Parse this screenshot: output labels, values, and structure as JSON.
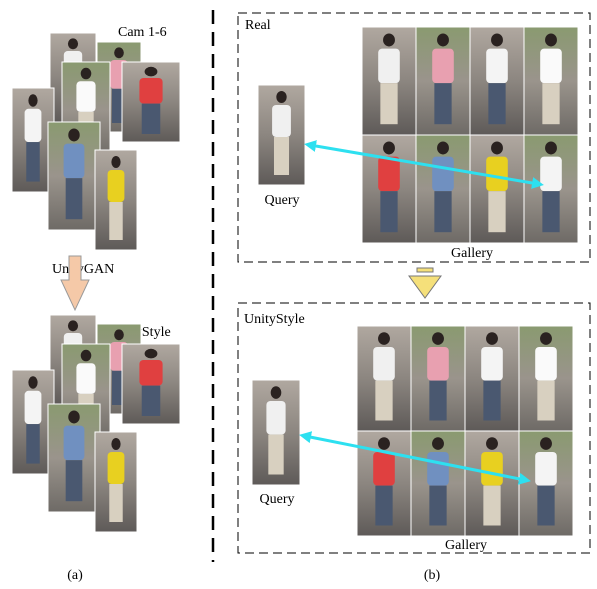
{
  "panel_a": {
    "top_label": "Cam 1-6",
    "arrow_label": "UnityGAN",
    "bottom_label": "UnityStyle",
    "caption": "(a)"
  },
  "panel_b": {
    "real": {
      "label": "Real",
      "query": "Query",
      "gallery": "Gallery"
    },
    "unitystyle": {
      "label": "UnityStyle",
      "query": "Query",
      "gallery": "Gallery"
    },
    "caption": "(b)"
  }
}
